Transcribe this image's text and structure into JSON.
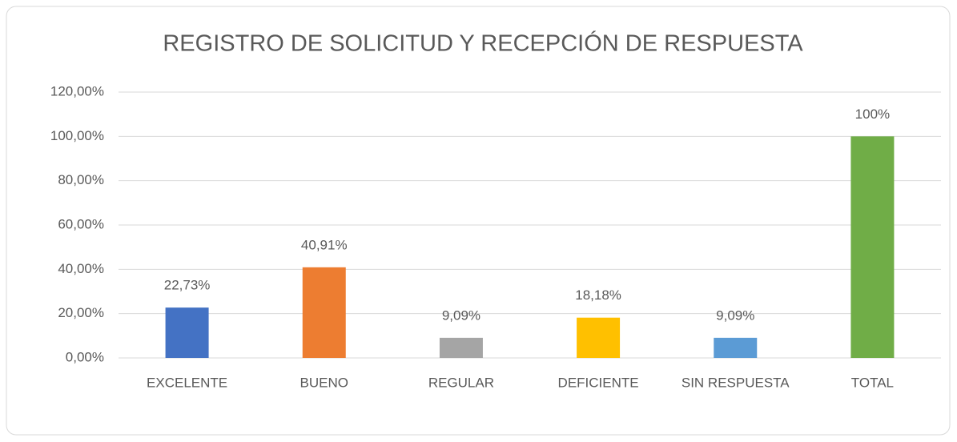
{
  "chart_data": {
    "type": "bar",
    "title": "REGISTRO DE SOLICITUD Y RECEPCIÓN DE RESPUESTA",
    "categories": [
      "EXCELENTE",
      "BUENO",
      "REGULAR",
      "DEFICIENTE",
      "SIN RESPUESTA",
      "TOTAL"
    ],
    "values": [
      22.73,
      40.91,
      9.09,
      18.18,
      9.09,
      100
    ],
    "value_labels": [
      "22,73%",
      "40,91%",
      "9,09%",
      "18,18%",
      "9,09%",
      "100%"
    ],
    "colors": [
      "#4472c4",
      "#ed7d31",
      "#a5a5a5",
      "#ffc000",
      "#5b9bd5",
      "#70ad47"
    ],
    "ylim": [
      0,
      120
    ],
    "yticks": [
      {
        "value": 0,
        "label": "0,00%"
      },
      {
        "value": 20,
        "label": "20,00%"
      },
      {
        "value": 40,
        "label": "40,00%"
      },
      {
        "value": 60,
        "label": "60,00%"
      },
      {
        "value": 80,
        "label": "80,00%"
      },
      {
        "value": 100,
        "label": "100,00%"
      },
      {
        "value": 120,
        "label": "120,00%"
      }
    ],
    "grid": true
  }
}
